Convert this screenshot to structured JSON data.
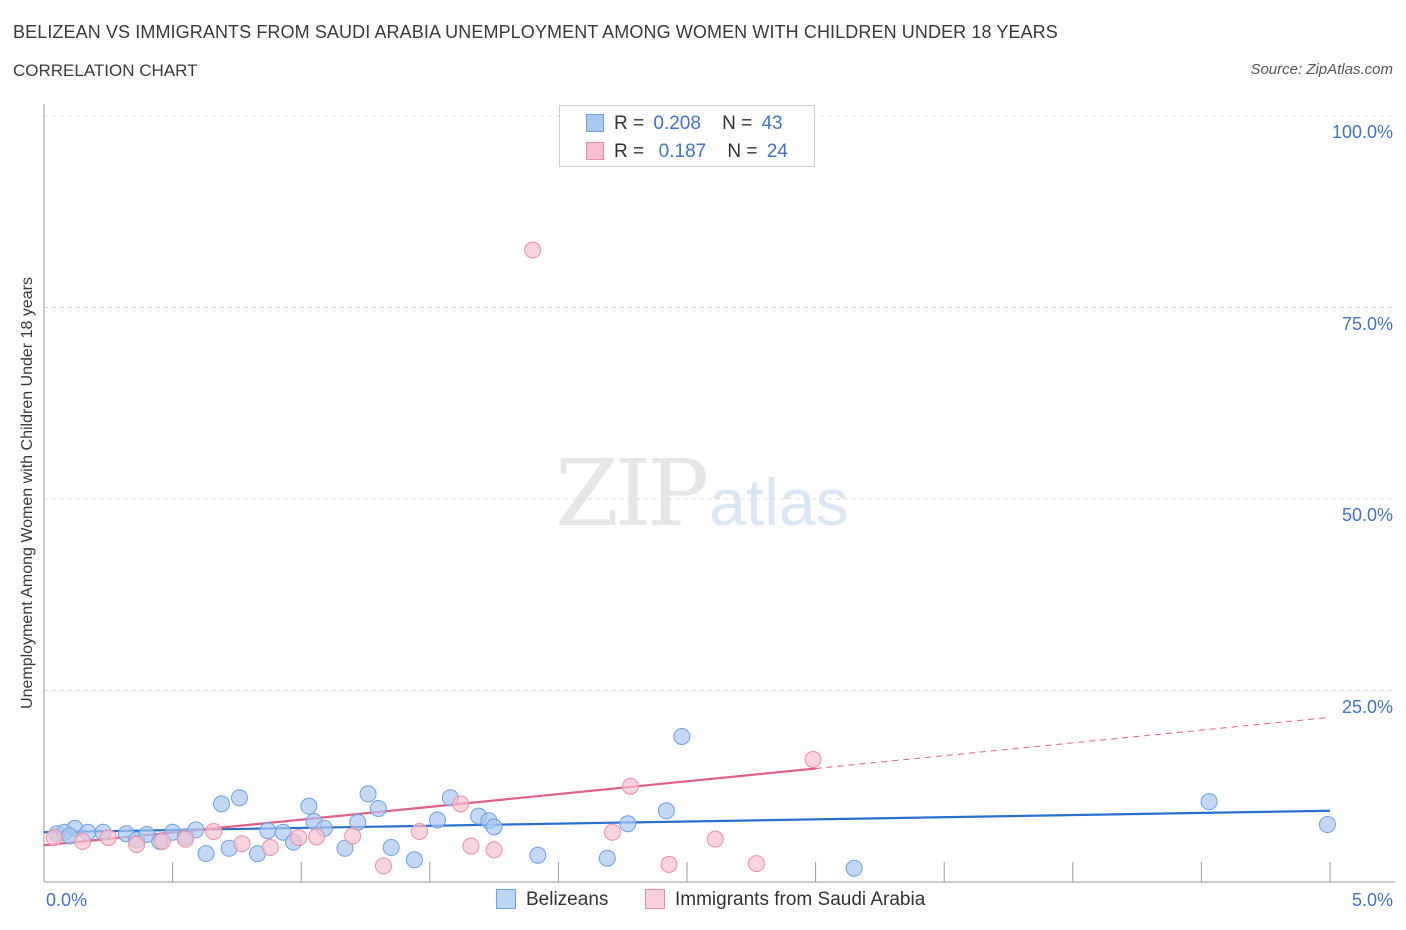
{
  "title": "BELIZEAN VS IMMIGRANTS FROM SAUDI ARABIA UNEMPLOYMENT AMONG WOMEN WITH CHILDREN UNDER 18 YEARS",
  "subtitle": "CORRELATION CHART",
  "source": "Source: ZipAtlas.com",
  "watermark": {
    "zip": "ZIP",
    "atlas": "atlas"
  },
  "legend": {
    "r_label": "R =",
    "n_label": "N =",
    "rows": [
      {
        "r": "0.208",
        "n": "43",
        "color": "#a8c8f0",
        "border": "#6fa0e0"
      },
      {
        "r": "0.187",
        "n": "24",
        "color": "#f7c0d0",
        "border": "#e890aa"
      }
    ]
  },
  "colors": {
    "blue_fill": "#a8c8f0",
    "blue_stroke": "#6fa0e0",
    "blue_line": "#2a6fd0",
    "pink_fill": "#f7c0d0",
    "pink_stroke": "#e890aa",
    "pink_line": "#e0608a",
    "tick_text": "#4472c4"
  },
  "chart_data": {
    "type": "scatter",
    "title": "BELIZEAN VS IMMIGRANTS FROM SAUDI ARABIA UNEMPLOYMENT AMONG WOMEN WITH CHILDREN UNDER 18 YEARS",
    "xlabel": "",
    "ylabel": "Unemployment Among Women with Children Under 18 years",
    "xlim": [
      0,
      5
    ],
    "ylim": [
      0,
      100
    ],
    "x_tick_labels": [
      "0.0%",
      "5.0%"
    ],
    "y_ticks": [
      25,
      50,
      75,
      100
    ],
    "y_tick_labels": [
      "25.0%",
      "50.0%",
      "75.0%",
      "100.0%"
    ],
    "grid": true,
    "legend_position": "top-center",
    "series": [
      {
        "name": "Belizeans",
        "trend": {
          "x0": 0.0,
          "y0": 6.5,
          "x1": 5.0,
          "y1": 9.3,
          "x_solid_end": 5.0
        },
        "points": [
          [
            0.05,
            6.3
          ],
          [
            0.08,
            6.5
          ],
          [
            0.12,
            7.0
          ],
          [
            0.17,
            6.5
          ],
          [
            0.23,
            6.5
          ],
          [
            0.32,
            6.3
          ],
          [
            0.36,
            5.5
          ],
          [
            0.4,
            6.2
          ],
          [
            0.45,
            5.3
          ],
          [
            0.5,
            6.5
          ],
          [
            0.55,
            5.9
          ],
          [
            0.59,
            6.8
          ],
          [
            0.63,
            3.7
          ],
          [
            0.69,
            10.2
          ],
          [
            0.72,
            4.4
          ],
          [
            0.76,
            11.0
          ],
          [
            0.83,
            3.7
          ],
          [
            0.87,
            6.7
          ],
          [
            0.93,
            6.5
          ],
          [
            0.97,
            5.2
          ],
          [
            1.03,
            9.9
          ],
          [
            1.05,
            7.9
          ],
          [
            1.09,
            7.0
          ],
          [
            1.17,
            4.4
          ],
          [
            1.22,
            7.8
          ],
          [
            1.26,
            11.5
          ],
          [
            1.3,
            9.6
          ],
          [
            1.35,
            4.5
          ],
          [
            1.44,
            2.9
          ],
          [
            1.53,
            8.1
          ],
          [
            1.58,
            11.0
          ],
          [
            1.69,
            8.6
          ],
          [
            1.73,
            8.0
          ],
          [
            1.75,
            7.2
          ],
          [
            1.92,
            3.5
          ],
          [
            2.19,
            3.1
          ],
          [
            2.27,
            7.6
          ],
          [
            2.42,
            9.3
          ],
          [
            2.48,
            19.0
          ],
          [
            3.15,
            1.8
          ],
          [
            4.53,
            10.5
          ],
          [
            4.99,
            7.5
          ],
          [
            0.1,
            6.0
          ]
        ]
      },
      {
        "name": "Immigrants from Saudi Arabia",
        "trend": {
          "x0": 0.0,
          "y0": 4.8,
          "x1": 5.0,
          "y1": 21.5,
          "x_solid_end": 3.0
        },
        "points": [
          [
            0.04,
            5.8
          ],
          [
            0.15,
            5.3
          ],
          [
            0.25,
            5.8
          ],
          [
            0.36,
            4.9
          ],
          [
            0.46,
            5.3
          ],
          [
            0.55,
            5.6
          ],
          [
            0.66,
            6.6
          ],
          [
            0.77,
            5.0
          ],
          [
            0.88,
            4.5
          ],
          [
            0.99,
            5.8
          ],
          [
            1.06,
            5.9
          ],
          [
            1.2,
            6.0
          ],
          [
            1.32,
            2.1
          ],
          [
            1.46,
            6.6
          ],
          [
            1.62,
            10.2
          ],
          [
            1.66,
            4.7
          ],
          [
            1.75,
            4.2
          ],
          [
            1.9,
            82.5
          ],
          [
            2.21,
            6.5
          ],
          [
            2.28,
            12.5
          ],
          [
            2.43,
            2.3
          ],
          [
            2.61,
            5.6
          ],
          [
            2.77,
            2.4
          ],
          [
            2.99,
            16.0
          ]
        ]
      }
    ]
  },
  "bottom_legend": {
    "items": [
      {
        "label": "Belizeans"
      },
      {
        "label": "Immigrants from Saudi Arabia"
      }
    ]
  }
}
